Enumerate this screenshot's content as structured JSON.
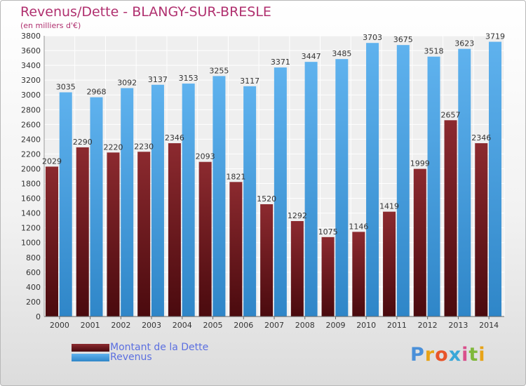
{
  "header": {
    "title": "Revenus/Dette - BLANGY-SUR-BRESLE",
    "subtitle": "(en milliers d'€)"
  },
  "colors": {
    "debt": "#7a1f24",
    "revenue": "#56a8e6",
    "title": "#b0306f",
    "legend_text": "#5b6fe0"
  },
  "chart_data": {
    "type": "bar",
    "categories": [
      "2000",
      "2001",
      "2002",
      "2003",
      "2004",
      "2005",
      "2006",
      "2007",
      "2008",
      "2009",
      "2010",
      "2011",
      "2012",
      "2013",
      "2014"
    ],
    "series": [
      {
        "name": "Montant de la Dette",
        "values": [
          2029,
          2290,
          2220,
          2230,
          2346,
          2093,
          1821,
          1520,
          1292,
          1075,
          1146,
          1419,
          1999,
          2657,
          2346
        ],
        "labels": [
          "2029",
          "2290",
          "2220",
          "2230",
          "2346",
          "2093",
          "1821",
          "1520",
          "1292",
          "1075",
          "1146",
          "1419",
          "1999",
          "2657",
          "2346"
        ]
      },
      {
        "name": "Revenus",
        "values": [
          3035,
          2968,
          3092,
          3137,
          3153,
          3255,
          3117,
          3371,
          3447,
          3485,
          3703,
          3675,
          3518,
          3623,
          3719
        ],
        "labels": [
          "3035",
          "2968",
          "3092",
          "3137",
          "3153",
          "3255",
          "3117",
          "3371",
          "3447",
          "3485",
          "3703",
          "3675",
          "3518",
          "3623",
          "3719"
        ]
      }
    ],
    "ylim": [
      0,
      3800
    ],
    "yticks": [
      0,
      200,
      400,
      600,
      800,
      1000,
      1200,
      1400,
      1600,
      1800,
      2000,
      2200,
      2400,
      2600,
      2800,
      3000,
      3200,
      3400,
      3600,
      3800
    ],
    "grid": true,
    "legend_position": "bottom-left"
  },
  "legend": {
    "items": [
      {
        "label": "Montant de la Dette"
      },
      {
        "label": "Revenus"
      }
    ]
  },
  "logo": {
    "letters": [
      "P",
      "r",
      "o",
      "x",
      "i",
      "t",
      "i"
    ],
    "colors": [
      "#4a90d9",
      "#e8a317",
      "#e8552a",
      "#3aa7d8",
      "#d94f8c",
      "#7fb83a",
      "#e8a317"
    ]
  }
}
